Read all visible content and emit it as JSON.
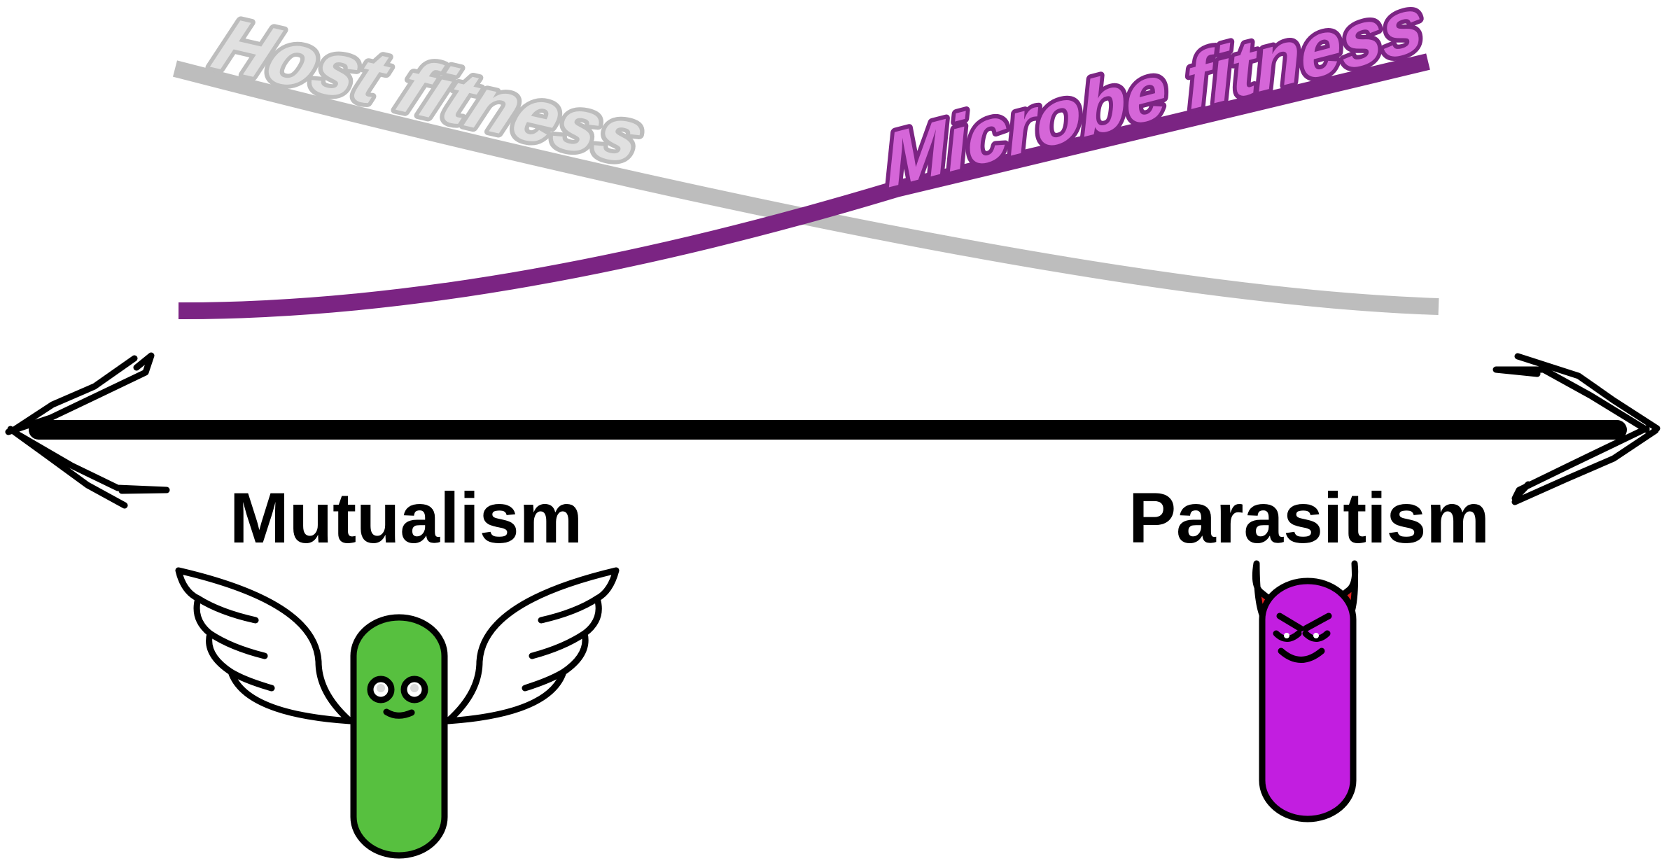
{
  "curves": {
    "host": {
      "label": "Host fitness",
      "color": "#bdbdbd",
      "text_fill": "#e0e0e0"
    },
    "microbe": {
      "label": "Microbe fitness",
      "color": "#7b2483",
      "text_fill": "#d566d8"
    }
  },
  "axis": {
    "left_label": "Mutualism",
    "right_label": "Parasitism",
    "color": "#000000"
  },
  "characters": {
    "angel": {
      "body_color": "#57c03f",
      "wings_color": "#ffffff"
    },
    "devil": {
      "body_color": "#c21ee0",
      "horns_color": "#e0201e"
    }
  }
}
